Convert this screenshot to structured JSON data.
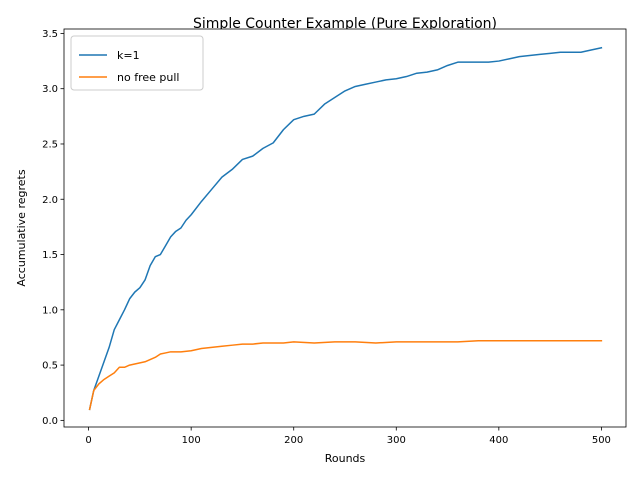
{
  "chart_data": {
    "type": "line",
    "title": "Simple Counter Example (Pure Exploration)",
    "xlabel": "Rounds",
    "ylabel": "Accumulative regrets",
    "xlim": [
      -24,
      524
    ],
    "ylim": [
      -0.06,
      3.54
    ],
    "xticks": [
      0,
      100,
      200,
      300,
      400,
      500
    ],
    "yticks": [
      0.0,
      0.5,
      1.0,
      1.5,
      2.0,
      2.5,
      3.0,
      3.5
    ],
    "xtick_labels": [
      "0",
      "100",
      "200",
      "300",
      "400",
      "500"
    ],
    "ytick_labels": [
      "0.0",
      "0.5",
      "1.0",
      "1.5",
      "2.0",
      "2.5",
      "3.0",
      "3.5"
    ],
    "grid": false,
    "legend": "top-left",
    "series": [
      {
        "name": "k=1",
        "color": "#1f77b4",
        "x": [
          1,
          5,
          10,
          15,
          20,
          25,
          30,
          35,
          40,
          45,
          50,
          55,
          60,
          65,
          70,
          75,
          80,
          85,
          90,
          95,
          100,
          110,
          120,
          130,
          140,
          150,
          160,
          170,
          180,
          190,
          200,
          210,
          220,
          230,
          240,
          250,
          260,
          270,
          280,
          290,
          300,
          310,
          320,
          330,
          340,
          350,
          360,
          370,
          380,
          390,
          400,
          410,
          420,
          430,
          440,
          450,
          460,
          470,
          480,
          490,
          500
        ],
        "y": [
          0.1,
          0.27,
          0.4,
          0.53,
          0.66,
          0.82,
          0.91,
          1.0,
          1.1,
          1.16,
          1.2,
          1.27,
          1.4,
          1.48,
          1.5,
          1.58,
          1.66,
          1.71,
          1.74,
          1.81,
          1.86,
          1.98,
          2.09,
          2.2,
          2.27,
          2.36,
          2.39,
          2.46,
          2.51,
          2.63,
          2.72,
          2.75,
          2.77,
          2.86,
          2.92,
          2.98,
          3.02,
          3.04,
          3.06,
          3.08,
          3.09,
          3.11,
          3.14,
          3.15,
          3.17,
          3.21,
          3.24,
          3.24,
          3.24,
          3.24,
          3.25,
          3.27,
          3.29,
          3.3,
          3.31,
          3.32,
          3.33,
          3.33,
          3.33,
          3.35,
          3.37
        ]
      },
      {
        "name": "no free pull",
        "color": "#ff7f0e",
        "x": [
          1,
          5,
          10,
          15,
          20,
          25,
          30,
          35,
          40,
          45,
          50,
          55,
          60,
          65,
          70,
          75,
          80,
          90,
          100,
          110,
          120,
          130,
          140,
          150,
          160,
          170,
          180,
          190,
          200,
          220,
          240,
          260,
          280,
          300,
          320,
          340,
          360,
          380,
          400,
          450,
          500
        ],
        "y": [
          0.1,
          0.27,
          0.33,
          0.37,
          0.4,
          0.43,
          0.48,
          0.48,
          0.5,
          0.51,
          0.52,
          0.53,
          0.55,
          0.57,
          0.6,
          0.61,
          0.62,
          0.62,
          0.63,
          0.65,
          0.66,
          0.67,
          0.68,
          0.69,
          0.69,
          0.7,
          0.7,
          0.7,
          0.71,
          0.7,
          0.71,
          0.71,
          0.7,
          0.71,
          0.71,
          0.71,
          0.71,
          0.72,
          0.72,
          0.72,
          0.72
        ]
      }
    ]
  }
}
